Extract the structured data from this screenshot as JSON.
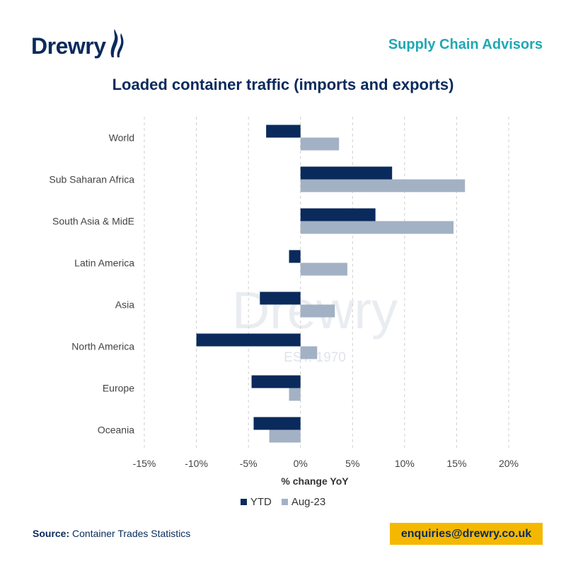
{
  "brand": {
    "logo_text": "Drewry",
    "tagline": "Supply Chain Advisors",
    "watermark_text": "Drewry",
    "watermark_est": "EST. 1970"
  },
  "footer": {
    "source_label": "Source:",
    "source_text": "Container Trades Statistics",
    "contact": "enquiries@drewry.co.uk"
  },
  "colors": {
    "brand_navy": "#0a2a5c",
    "accent_teal": "#1fa8b4",
    "contact_yellow": "#f5b800"
  },
  "chart_data": {
    "type": "bar",
    "orientation": "horizontal",
    "title": "Loaded container traffic (imports and exports)",
    "xlabel": "% change YoY",
    "ylabel": "",
    "xlim": [
      -15,
      20
    ],
    "x_ticks": [
      -15,
      -10,
      -5,
      0,
      5,
      10,
      15,
      20
    ],
    "x_tick_labels": [
      "-15%",
      "-10%",
      "-5%",
      "0%",
      "5%",
      "10%",
      "15%",
      "20%"
    ],
    "grid": "vertical dashed",
    "legend_position": "bottom",
    "categories": [
      "World",
      "Sub Saharan Africa",
      "South Asia & MidE",
      "Latin America",
      "Asia",
      "North America",
      "Europe",
      "Oceania"
    ],
    "series": [
      {
        "name": "YTD",
        "color": "#0a2a5c",
        "values": [
          -3.3,
          8.8,
          7.2,
          -1.1,
          -3.9,
          -10.0,
          -4.7,
          -4.5
        ]
      },
      {
        "name": "Aug-23",
        "color": "#a3b1c4",
        "values": [
          3.7,
          15.8,
          14.7,
          4.5,
          3.3,
          1.6,
          -1.1,
          -3.0
        ]
      }
    ]
  }
}
